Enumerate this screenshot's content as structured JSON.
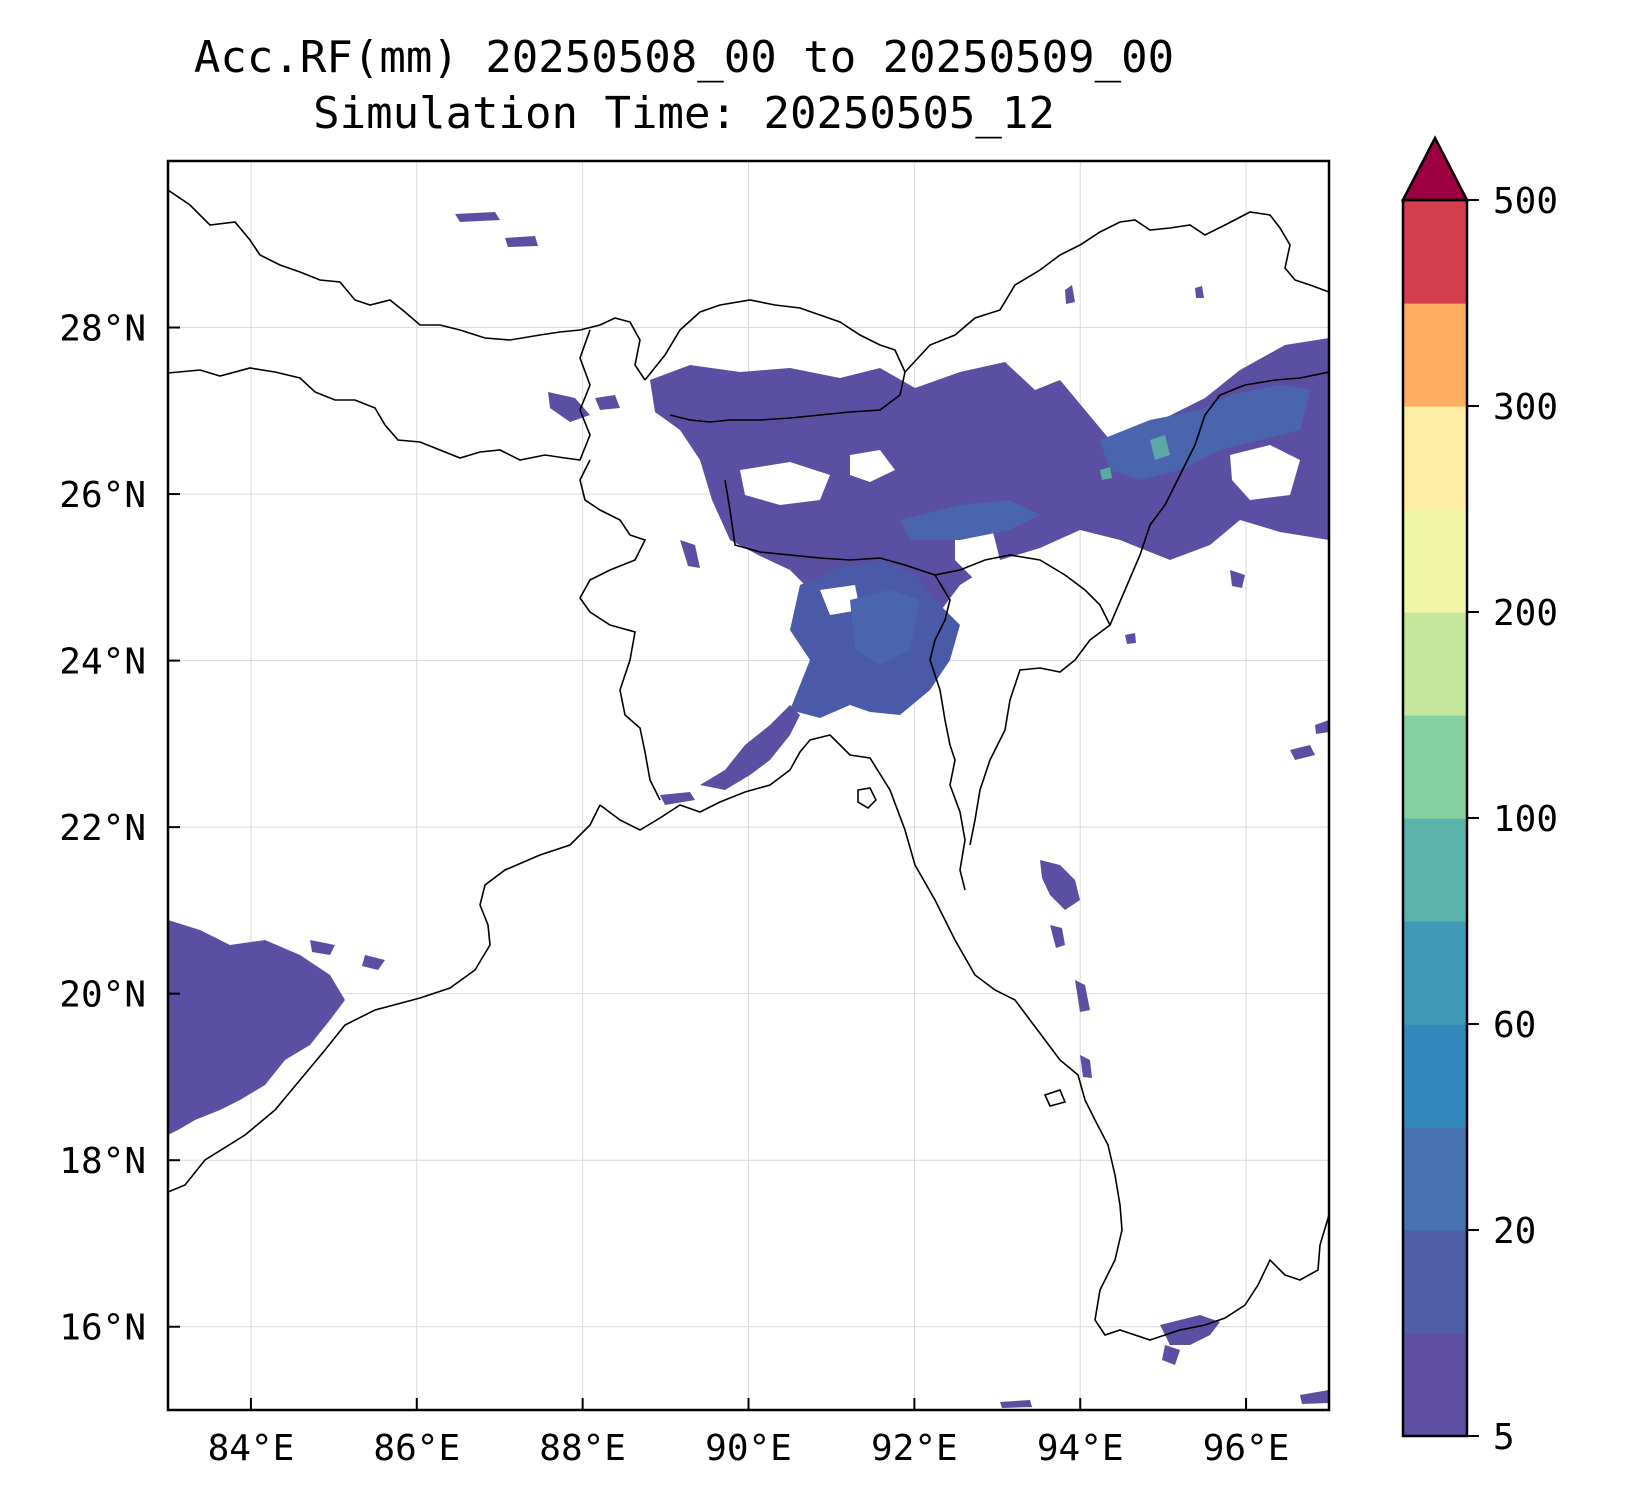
{
  "title_line1": "Acc.RF(mm) 20250508_00 to 20250509_00",
  "title_line2": "Simulation Time: 20250505_12",
  "map": {
    "lon_range": [
      83.0,
      97.0
    ],
    "lat_range": [
      15.0,
      30.0
    ],
    "lon_ticks": [
      84,
      86,
      88,
      90,
      92,
      94,
      96
    ],
    "lon_tick_labels": [
      "84°E",
      "86°E",
      "88°E",
      "90°E",
      "92°E",
      "94°E",
      "96°E"
    ],
    "lat_ticks": [
      16,
      18,
      20,
      22,
      24,
      26,
      28
    ],
    "lat_tick_labels": [
      "16°N",
      "18°N",
      "20°N",
      "22°N",
      "24°N",
      "26°N",
      "28°N"
    ],
    "gridlines": true
  },
  "colorbar": {
    "levels": [
      5,
      10,
      20,
      40,
      60,
      80,
      100,
      150,
      200,
      250,
      300,
      350,
      500
    ],
    "colors": [
      "#5e4fa2",
      "#4f5ea8",
      "#4773b2",
      "#3288bd",
      "#4199b8",
      "#5ab4ac",
      "#85cfa0",
      "#c5e79c",
      "#eff7a6",
      "#ffeda3",
      "#fdae61",
      "#d53e4f"
    ],
    "extend_color": "#9e0142",
    "extend": "max",
    "tick_labels": [
      "5",
      "20",
      "60",
      "100",
      "200",
      "300",
      "500"
    ]
  },
  "colors": {
    "rain_light": "#5a4fa2",
    "rain_mid": "#4a65ad",
    "rain_high": "#5aa9a5",
    "coastline": "#000000"
  }
}
